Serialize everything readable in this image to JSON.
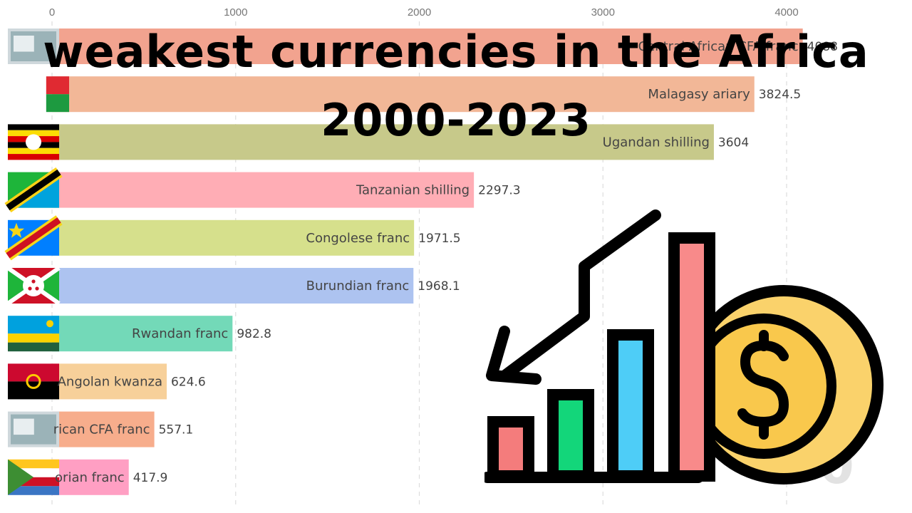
{
  "title_line1": "weakest currencies in the Africa",
  "title_line2": "2000-2023",
  "chart_data": {
    "type": "bar",
    "orientation": "horizontal",
    "xticks": [
      0,
      1000,
      2000,
      3000,
      4000
    ],
    "xlim": [
      0,
      4250
    ],
    "grid": true,
    "categories": [
      "Central African CFA franc",
      "Malagasy ariary",
      "Ugandan shilling",
      "Tanzanian shilling",
      "Congolese franc",
      "Burundian franc",
      "Rwandan franc",
      "Angolan kwanza",
      "West African CFA franc",
      "Comorian franc"
    ],
    "visible_labels": [
      "Central African CFA franc",
      "Malagasy ariary",
      "Ugandan shilling",
      "Tanzanian shilling",
      "Congolese franc",
      "Burundian franc",
      "Rwandan franc",
      "Angolan kwanza",
      "rican CFA franc",
      "orian franc"
    ],
    "values": [
      4088,
      3824.5,
      3604,
      2297.3,
      1971.5,
      1968.1,
      982.8,
      624.6,
      557.1,
      417.9
    ],
    "value_labels": [
      "4088",
      "3824.5",
      "3604",
      "2297.3",
      "1971.5",
      "1968.1",
      "982.8",
      "624.6",
      "557.1",
      "417.9"
    ],
    "colors": [
      "#f2a38f",
      "#f2b797",
      "#c7c98a",
      "#ffadb5",
      "#d6e08c",
      "#adc3f0",
      "#73d9b8",
      "#f7d09a",
      "#f7ad8c",
      "#ff9fc3"
    ],
    "flags": [
      "banknote",
      "madagascar",
      "uganda",
      "tanzania",
      "drc",
      "burundi",
      "rwanda",
      "angola",
      "banknote",
      "comoros"
    ]
  },
  "icon": {
    "name": "falling-chart-dollar-coin-icon",
    "bar_colors": [
      "#f47c7c",
      "#13d67a",
      "#4ecdf7",
      "#f88a8a"
    ],
    "coin_color": "#f9c84c",
    "outline_color": "#000000"
  },
  "watermark_glyph": "0"
}
